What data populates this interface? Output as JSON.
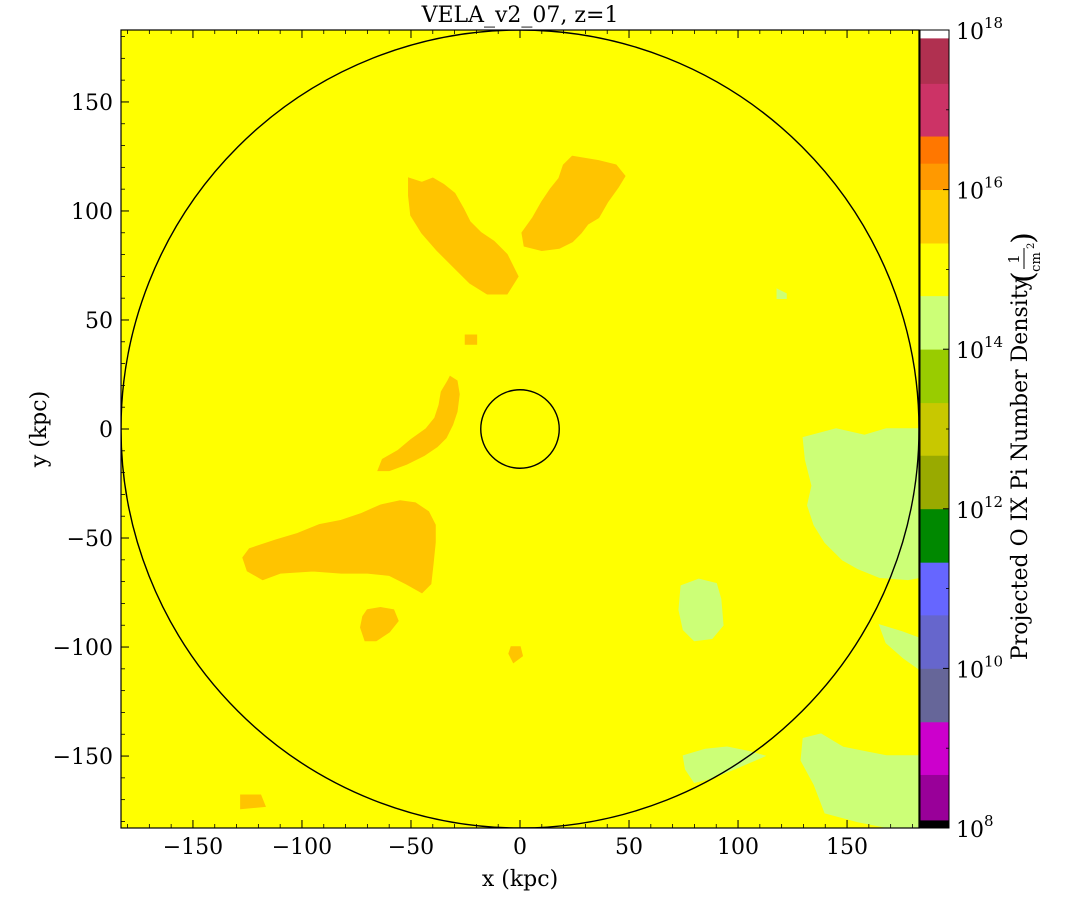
{
  "chart_data": {
    "type": "heatmap",
    "title": "VELA_v2_07, z=1",
    "xlabel": "x  (kpc)",
    "ylabel": "y  (kpc)",
    "xlim": [
      -183,
      183
    ],
    "ylim": [
      -183,
      183
    ],
    "xticks": [
      -150,
      -100,
      -50,
      0,
      50,
      100,
      150
    ],
    "yticks": [
      -150,
      -100,
      -50,
      0,
      50,
      100,
      150
    ],
    "xtick_labels": [
      "−150",
      "−100",
      "−50",
      "0",
      "50",
      "100",
      "150"
    ],
    "ytick_labels": [
      "−150",
      "−100",
      "−50",
      "0",
      "50",
      "100",
      "150"
    ],
    "grid": false,
    "background_bin_color": "#ffff00",
    "circles": [
      {
        "center": [
          0,
          0
        ],
        "radius": 183
      },
      {
        "center": [
          0,
          0
        ],
        "radius": 18
      }
    ],
    "colorbar": {
      "label_text": "Projected O IX Pi Number Density",
      "label_unit_num": "1",
      "label_unit_den": "cm",
      "label_unit_exp": "2",
      "scale": "log",
      "range_exp": [
        8,
        18
      ],
      "tick_exps": [
        8,
        10,
        12,
        14,
        16,
        18
      ],
      "tick_base": "10",
      "bins": [
        {
          "from": 8.0,
          "to": 8.1,
          "color": "#000000"
        },
        {
          "from": 8.1,
          "to": 8.67,
          "color": "#990099"
        },
        {
          "from": 8.67,
          "to": 9.33,
          "color": "#cc00cc"
        },
        {
          "from": 9.33,
          "to": 10.0,
          "color": "#666699"
        },
        {
          "from": 10.0,
          "to": 10.67,
          "color": "#6666cc"
        },
        {
          "from": 10.67,
          "to": 11.33,
          "color": "#6666ff"
        },
        {
          "from": 11.33,
          "to": 12.0,
          "color": "#008800"
        },
        {
          "from": 12.0,
          "to": 12.67,
          "color": "#99aa00"
        },
        {
          "from": 12.67,
          "to": 13.33,
          "color": "#c8c800"
        },
        {
          "from": 13.33,
          "to": 14.0,
          "color": "#99cc00"
        },
        {
          "from": 14.0,
          "to": 14.67,
          "color": "#ccff77"
        },
        {
          "from": 14.67,
          "to": 15.33,
          "color": "#ffff00"
        },
        {
          "from": 15.33,
          "to": 16.0,
          "color": "#ffcc00"
        },
        {
          "from": 16.0,
          "to": 16.33,
          "color": "#ff9900"
        },
        {
          "from": 16.33,
          "to": 16.67,
          "color": "#ff7700"
        },
        {
          "from": 16.67,
          "to": 17.33,
          "color": "#cc3366"
        },
        {
          "from": 17.33,
          "to": 17.9,
          "color": "#b03050"
        },
        {
          "from": 17.9,
          "to": 18.0,
          "color": "#ffffff"
        }
      ]
    },
    "regions": [
      {
        "name": "upper-arm-left",
        "color": "#ffc400",
        "points": [
          [
            -51,
            115
          ],
          [
            -45,
            113
          ],
          [
            -40,
            115
          ],
          [
            -35,
            112
          ],
          [
            -30,
            108
          ],
          [
            -26,
            101
          ],
          [
            -23,
            95
          ],
          [
            -18,
            90
          ],
          [
            -12,
            86
          ],
          [
            -6,
            80
          ],
          [
            -1,
            70
          ],
          [
            -6,
            62
          ],
          [
            -15,
            62
          ],
          [
            -23,
            67
          ],
          [
            -30,
            74
          ],
          [
            -38,
            82
          ],
          [
            -45,
            90
          ],
          [
            -50,
            98
          ],
          [
            -51,
            107
          ]
        ]
      },
      {
        "name": "upper-arm-right",
        "color": "#ffc400",
        "points": [
          [
            24,
            125
          ],
          [
            36,
            123
          ],
          [
            44,
            121
          ],
          [
            48,
            116
          ],
          [
            45,
            111
          ],
          [
            40,
            104
          ],
          [
            36,
            97
          ],
          [
            31,
            94
          ],
          [
            28,
            90
          ],
          [
            24,
            86
          ],
          [
            18,
            83
          ],
          [
            10,
            82
          ],
          [
            2,
            84
          ],
          [
            1,
            90
          ],
          [
            6,
            97
          ],
          [
            10,
            104
          ],
          [
            14,
            110
          ],
          [
            18,
            115
          ],
          [
            20,
            121
          ]
        ]
      },
      {
        "name": "left-streak-upper",
        "color": "#ffc400",
        "points": [
          [
            -32,
            24
          ],
          [
            -29,
            22
          ],
          [
            -28,
            16
          ],
          [
            -29,
            8
          ],
          [
            -31,
            2
          ],
          [
            -34,
            -4
          ],
          [
            -38,
            -8
          ],
          [
            -44,
            -12
          ],
          [
            -52,
            -16
          ],
          [
            -60,
            -19
          ],
          [
            -65,
            -19
          ],
          [
            -63,
            -14
          ],
          [
            -56,
            -10
          ],
          [
            -50,
            -5
          ],
          [
            -43,
            0
          ],
          [
            -39,
            5
          ],
          [
            -37,
            11
          ],
          [
            -36,
            17
          ],
          [
            -33,
            22
          ]
        ]
      },
      {
        "name": "left-blob-large",
        "color": "#ffc400",
        "points": [
          [
            -124,
            -55
          ],
          [
            -112,
            -51
          ],
          [
            -102,
            -48
          ],
          [
            -92,
            -44
          ],
          [
            -82,
            -42
          ],
          [
            -73,
            -39
          ],
          [
            -64,
            -35
          ],
          [
            -55,
            -33
          ],
          [
            -48,
            -34
          ],
          [
            -42,
            -38
          ],
          [
            -39,
            -44
          ],
          [
            -39,
            -52
          ],
          [
            -40,
            -62
          ],
          [
            -41,
            -71
          ],
          [
            -45,
            -75
          ],
          [
            -52,
            -71
          ],
          [
            -60,
            -67
          ],
          [
            -70,
            -66
          ],
          [
            -82,
            -66
          ],
          [
            -95,
            -65
          ],
          [
            -110,
            -66
          ],
          [
            -118,
            -69
          ],
          [
            -125,
            -65
          ],
          [
            -127,
            -59
          ]
        ]
      },
      {
        "name": "left-blob-small",
        "color": "#ffc400",
        "points": [
          [
            -70,
            -83
          ],
          [
            -64,
            -82
          ],
          [
            -58,
            -83
          ],
          [
            -56,
            -88
          ],
          [
            -60,
            -93
          ],
          [
            -66,
            -97
          ],
          [
            -71,
            -97
          ],
          [
            -73,
            -91
          ],
          [
            -72,
            -86
          ]
        ]
      },
      {
        "name": "speck-lower",
        "color": "#ffc400",
        "points": [
          [
            -4,
            -100
          ],
          [
            0,
            -100
          ],
          [
            1,
            -104
          ],
          [
            -3,
            -107
          ],
          [
            -5,
            -103
          ]
        ]
      },
      {
        "name": "bottom-left-patch",
        "color": "#ffc400",
        "points": [
          [
            -128,
            -168
          ],
          [
            -119,
            -168
          ],
          [
            -117,
            -173
          ],
          [
            -128,
            -174
          ]
        ]
      },
      {
        "name": "top-speck",
        "color": "#ffc400",
        "points": [
          [
            -25,
            43
          ],
          [
            -20,
            43
          ],
          [
            -20,
            39
          ],
          [
            -25,
            39
          ]
        ]
      },
      {
        "name": "right-band",
        "color": "#ccff77",
        "points": [
          [
            130,
            -4
          ],
          [
            145,
            0
          ],
          [
            158,
            -3
          ],
          [
            168,
            0
          ],
          [
            180,
            0
          ],
          [
            183,
            0
          ],
          [
            183,
            -68
          ],
          [
            178,
            -69
          ],
          [
            165,
            -68
          ],
          [
            155,
            -64
          ],
          [
            148,
            -60
          ],
          [
            140,
            -52
          ],
          [
            135,
            -44
          ],
          [
            132,
            -35
          ],
          [
            134,
            -26
          ],
          [
            131,
            -14
          ]
        ]
      },
      {
        "name": "right-edge-lower",
        "color": "#ccff77",
        "points": [
          [
            165,
            -90
          ],
          [
            175,
            -93
          ],
          [
            183,
            -96
          ],
          [
            183,
            -110
          ],
          [
            176,
            -105
          ],
          [
            168,
            -98
          ]
        ]
      },
      {
        "name": "right-blob-mid",
        "color": "#ccff77",
        "points": [
          [
            74,
            -72
          ],
          [
            82,
            -69
          ],
          [
            90,
            -71
          ],
          [
            92,
            -78
          ],
          [
            93,
            -90
          ],
          [
            88,
            -96
          ],
          [
            80,
            -97
          ],
          [
            75,
            -92
          ],
          [
            73,
            -83
          ]
        ]
      },
      {
        "name": "bottom-right-patch",
        "color": "#ccff77",
        "points": [
          [
            130,
            -142
          ],
          [
            138,
            -140
          ],
          [
            148,
            -146
          ],
          [
            158,
            -148
          ],
          [
            168,
            -150
          ],
          [
            178,
            -150
          ],
          [
            183,
            -150
          ],
          [
            183,
            -183
          ],
          [
            170,
            -183
          ],
          [
            155,
            -180
          ],
          [
            140,
            -176
          ],
          [
            135,
            -163
          ],
          [
            129,
            -152
          ]
        ]
      },
      {
        "name": "bottom-middle-strip",
        "color": "#ccff77",
        "points": [
          [
            75,
            -150
          ],
          [
            85,
            -147
          ],
          [
            95,
            -146
          ],
          [
            105,
            -148
          ],
          [
            112,
            -150
          ],
          [
            98,
            -156
          ],
          [
            88,
            -160
          ],
          [
            80,
            -162
          ],
          [
            76,
            -156
          ]
        ]
      },
      {
        "name": "top-right-dot",
        "color": "#ccff77",
        "points": [
          [
            118,
            64
          ],
          [
            122,
            62
          ],
          [
            122,
            60
          ],
          [
            118,
            60
          ]
        ]
      }
    ]
  }
}
